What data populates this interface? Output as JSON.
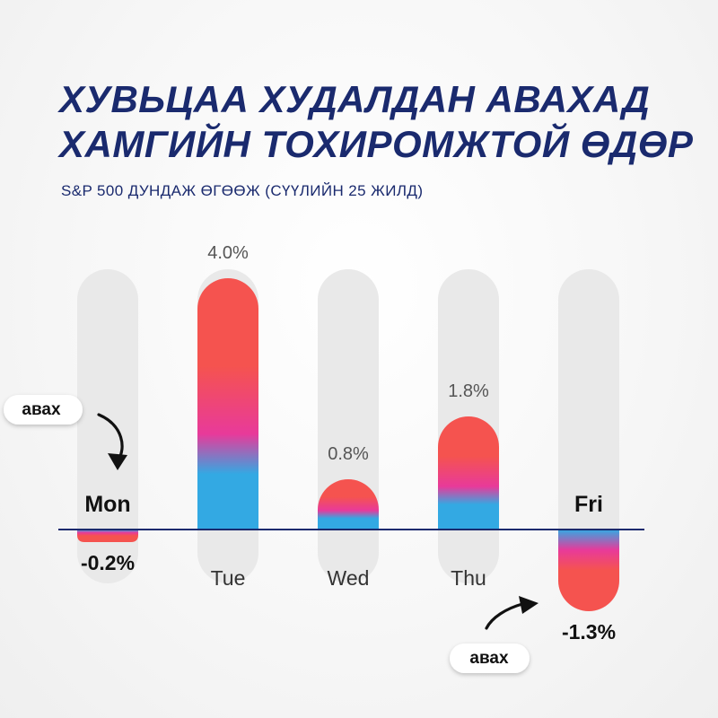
{
  "title_line1": "ХУВЬЦАА ХУДАЛДАН АВАХАД",
  "title_line2": "ХАМГИЙН ТОХИРОМЖТОЙ ӨДӨР",
  "subtitle": "S&P 500 ДУНДАЖ ӨГӨӨЖ (СҮҮЛИЙН 25 ЖИЛД)",
  "annotations": {
    "buy_label_left": "авах",
    "buy_label_right": "авах"
  },
  "colors": {
    "title": "#1a2a6e",
    "axis": "#1a2a6e",
    "track": "#e9e9e9",
    "bar_top": "#f5534f",
    "bar_mid": "#e83a9a",
    "bar_bottom": "#33a9e3"
  },
  "chart_data": {
    "type": "bar",
    "categories": [
      "Mon",
      "Tue",
      "Wed",
      "Thu",
      "Fri"
    ],
    "values": [
      -0.2,
      4.0,
      0.8,
      1.8,
      -1.3
    ],
    "value_labels": [
      "-0.2%",
      "4.0%",
      "0.8%",
      "1.8%",
      "-1.3%"
    ],
    "highlighted": [
      "Mon",
      "Fri"
    ],
    "unit": "%",
    "ylim": [
      -1.5,
      4.5
    ],
    "grid": false,
    "legend": "none"
  }
}
